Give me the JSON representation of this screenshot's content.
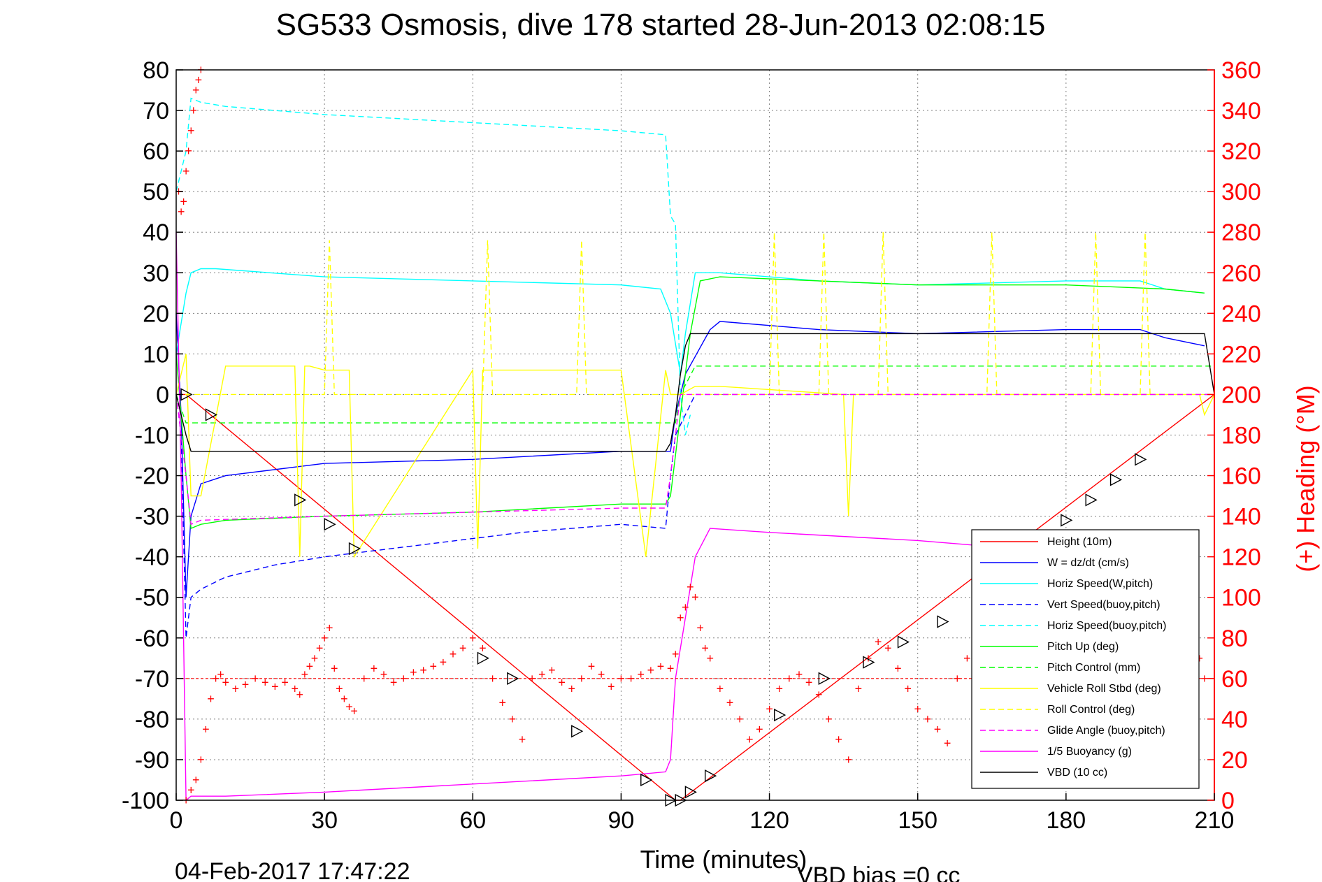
{
  "chart_data": {
    "type": "line",
    "title": "SG533 Osmosis, dive 178 started 28-Jun-2013 02:08:15",
    "xlabel": "Time (minutes)",
    "ylabel_right": "(+) Heading (°M)",
    "xlim": [
      0,
      210
    ],
    "ylim": [
      -100,
      80
    ],
    "ylim_right": [
      0,
      360
    ],
    "xticks": [
      0,
      30,
      60,
      90,
      120,
      150,
      180,
      210
    ],
    "yticks": [
      80,
      70,
      60,
      50,
      40,
      30,
      20,
      10,
      0,
      -10,
      -20,
      -30,
      -40,
      -50,
      -60,
      -70,
      -80,
      -90,
      -100
    ],
    "yticks_right": [
      360,
      340,
      320,
      300,
      280,
      260,
      240,
      220,
      200,
      180,
      160,
      140,
      120,
      100,
      80,
      60,
      40,
      20,
      0
    ],
    "grid": true,
    "legend_position": "lower-right",
    "footer_left": "04-Feb-2017 17:47:22",
    "footer_right": "VBD bias =0 cc",
    "colors": {
      "axis": "#000000",
      "right_axis": "#ff0000",
      "grid": "#808080"
    },
    "series": [
      {
        "name": "Height (10m)",
        "color": "#ff0000",
        "style": "solid",
        "x": [
          0,
          2,
          101,
          102,
          210
        ],
        "y": [
          0,
          0,
          -100,
          -100,
          0
        ]
      },
      {
        "name": "W = dz/dt (cm/s)",
        "color": "#0000ff",
        "style": "solid",
        "x": [
          0,
          1,
          2,
          3,
          5,
          10,
          30,
          60,
          90,
          100,
          101,
          103,
          108,
          110,
          130,
          150,
          180,
          195,
          200,
          208
        ],
        "y": [
          20,
          -5,
          -50,
          -30,
          -22,
          -20,
          -17,
          -16,
          -14,
          -14,
          -5,
          5,
          16,
          18,
          16,
          15,
          16,
          16,
          14,
          12
        ]
      },
      {
        "name": "Horiz Speed(W,pitch)",
        "color": "#00ffff",
        "style": "solid",
        "x": [
          0,
          2,
          3,
          5,
          8,
          30,
          60,
          90,
          98,
          100,
          102,
          103,
          105,
          110,
          130,
          150,
          180,
          195,
          200,
          208
        ],
        "y": [
          10,
          25,
          30,
          31,
          31,
          29,
          28,
          27,
          26,
          20,
          5,
          15,
          30,
          30,
          28,
          27,
          28,
          28,
          26,
          25
        ]
      },
      {
        "name": "Vert Speed(buoy,pitch)",
        "color": "#0000ff",
        "style": "dashed",
        "x": [
          0,
          1,
          2,
          3,
          5,
          10,
          20,
          30,
          50,
          70,
          90,
          99,
          100,
          101,
          105,
          110,
          130,
          150,
          180,
          200,
          210
        ],
        "y": [
          0,
          -10,
          -60,
          -50,
          -48,
          -45,
          -42,
          -40,
          -37,
          -34,
          -32,
          -33,
          -20,
          -10,
          0,
          0,
          0,
          0,
          0,
          0,
          0
        ]
      },
      {
        "name": "Horiz Speed(buoy,pitch)",
        "color": "#00ffff",
        "style": "dashed",
        "x": [
          0,
          2,
          3,
          5,
          10,
          30,
          60,
          90,
          99,
          100,
          101,
          102,
          103,
          104
        ],
        "y": [
          50,
          60,
          73,
          72,
          71,
          69,
          67,
          65,
          64,
          44,
          42,
          0,
          -10,
          -5
        ]
      },
      {
        "name": "Pitch Up (deg)",
        "color": "#00ff00",
        "style": "solid",
        "x": [
          0,
          2,
          3,
          5,
          10,
          30,
          60,
          90,
          99,
          100,
          102,
          104,
          106,
          110,
          130,
          150,
          180,
          200,
          208
        ],
        "y": [
          10,
          -20,
          -33,
          -32,
          -31,
          -30,
          -29,
          -27,
          -27,
          -25,
          -5,
          15,
          28,
          29,
          28,
          27,
          27,
          26,
          25
        ]
      },
      {
        "name": "Pitch Control (mm)",
        "color": "#00ff00",
        "style": "dashed",
        "x": [
          0,
          2,
          3,
          100,
          101,
          102,
          105,
          210
        ],
        "y": [
          0,
          -7,
          -7,
          -7,
          -7,
          0,
          7,
          7
        ]
      },
      {
        "name": "Vehicle Roll Stbd (deg)",
        "color": "#ffff00",
        "style": "solid",
        "x": [
          0,
          2,
          3,
          5,
          10,
          24,
          25,
          26,
          27,
          30,
          35,
          36,
          60,
          61,
          62,
          90,
          95,
          99,
          100,
          102,
          105,
          110,
          135,
          136,
          137,
          138,
          140,
          180,
          207,
          208,
          210
        ],
        "y": [
          0,
          10,
          -25,
          -25,
          7,
          7,
          -40,
          7,
          7,
          6,
          6,
          -40,
          6,
          -38,
          6,
          6,
          -40,
          6,
          0,
          0,
          2,
          2,
          0,
          -30,
          0,
          0,
          0,
          0,
          0,
          -5,
          0
        ]
      },
      {
        "name": "Roll Control (deg)",
        "color": "#ffff00",
        "style": "dashed",
        "x": [
          0,
          30,
          31,
          32,
          62,
          63,
          64,
          81,
          82,
          83,
          105,
          120,
          121,
          122,
          130,
          131,
          132,
          142,
          143,
          144,
          164,
          165,
          166,
          180,
          185,
          186,
          187,
          190,
          195,
          196,
          197,
          210
        ],
        "y": [
          0,
          0,
          38,
          0,
          0,
          38,
          0,
          0,
          38,
          0,
          0,
          0,
          40,
          0,
          0,
          40,
          0,
          0,
          40,
          0,
          0,
          40,
          0,
          0,
          0,
          40,
          0,
          0,
          0,
          40,
          0,
          0
        ]
      },
      {
        "name": "Glide Angle (buoy,pitch)",
        "color": "#ff00ff",
        "style": "dashed",
        "x": [
          0,
          2,
          3,
          5,
          30,
          60,
          90,
          99,
          100,
          102,
          105,
          210
        ],
        "y": [
          0,
          -20,
          -32,
          -31,
          -30,
          -29,
          -28,
          -28,
          -20,
          0,
          0,
          0
        ]
      },
      {
        "name": "1/5 Buoyancy (g)",
        "color": "#ff00ff",
        "style": "solid",
        "x": [
          0,
          1,
          2,
          3,
          10,
          30,
          60,
          90,
          99,
          100,
          101,
          103,
          105,
          108,
          120,
          150,
          170
        ],
        "y": [
          40,
          -20,
          -100,
          -99,
          -99,
          -98,
          -96,
          -94,
          -93,
          -90,
          -70,
          -55,
          -40,
          -33,
          -34,
          -36,
          -38
        ]
      },
      {
        "name": "VBD (10 cc)",
        "color": "#000000",
        "style": "solid",
        "x": [
          0,
          1,
          2,
          3,
          5,
          99,
          100,
          101,
          102,
          103,
          104,
          105,
          207,
          208,
          210
        ],
        "y": [
          0,
          -5,
          -10,
          -14,
          -14,
          -14,
          -12,
          -5,
          5,
          12,
          15,
          15,
          15,
          15,
          0
        ]
      }
    ],
    "heading_series": {
      "name": "Heading",
      "axis": "right",
      "color": "#ff0000",
      "marker": "+",
      "reference_value": 60,
      "x": [
        0.5,
        1,
        1.5,
        2,
        2.5,
        3,
        3.5,
        4,
        4.5,
        5,
        2,
        3,
        4,
        5,
        6,
        7,
        8,
        9,
        10,
        12,
        14,
        16,
        18,
        20,
        22,
        24,
        25,
        26,
        27,
        28,
        29,
        30,
        31,
        32,
        33,
        34,
        35,
        36,
        38,
        40,
        42,
        44,
        46,
        48,
        50,
        52,
        54,
        56,
        58,
        60,
        62,
        64,
        66,
        68,
        70,
        72,
        74,
        76,
        78,
        80,
        82,
        84,
        86,
        88,
        90,
        92,
        94,
        96,
        98,
        100,
        101,
        102,
        103,
        104,
        105,
        106,
        107,
        108,
        110,
        112,
        114,
        116,
        118,
        120,
        122,
        124,
        126,
        128,
        130,
        132,
        134,
        136,
        138,
        140,
        142,
        144,
        146,
        148,
        150,
        152,
        154,
        156,
        158,
        160,
        162,
        164,
        166,
        168,
        170,
        172,
        174,
        176,
        178,
        180,
        182,
        184,
        186,
        188,
        190,
        192,
        194,
        196,
        198,
        200,
        202,
        204,
        206,
        207,
        208
      ],
      "y": [
        300,
        290,
        295,
        310,
        320,
        330,
        340,
        350,
        355,
        360,
        0,
        5,
        10,
        20,
        35,
        50,
        60,
        62,
        58,
        55,
        57,
        60,
        58,
        56,
        58,
        55,
        52,
        62,
        66,
        70,
        75,
        80,
        85,
        65,
        55,
        50,
        46,
        44,
        60,
        65,
        62,
        58,
        60,
        63,
        64,
        66,
        68,
        72,
        75,
        80,
        75,
        60,
        48,
        40,
        30,
        60,
        62,
        64,
        58,
        55,
        60,
        66,
        62,
        56,
        60,
        60,
        62,
        64,
        66,
        65,
        72,
        90,
        95,
        105,
        100,
        85,
        75,
        70,
        55,
        48,
        40,
        30,
        35,
        45,
        55,
        60,
        62,
        58,
        52,
        40,
        30,
        20,
        55,
        70,
        78,
        75,
        65,
        55,
        45,
        40,
        35,
        28,
        60,
        70,
        75,
        62,
        55,
        45,
        60,
        70,
        75,
        80,
        78,
        70,
        65,
        60,
        55,
        50,
        60,
        55,
        65,
        60,
        55,
        50,
        60,
        65,
        80,
        70,
        60
      ]
    },
    "dive_markers": {
      "name": "Dive markers",
      "color": "#000000",
      "x": [
        2,
        7,
        25,
        31,
        36,
        62,
        68,
        81,
        95,
        100,
        102,
        104,
        108,
        122,
        131,
        140,
        147,
        155,
        174,
        180,
        185,
        190,
        195
      ],
      "y": [
        0,
        -5,
        -26,
        -32,
        -38,
        -65,
        -70,
        -83,
        -95,
        -100,
        -100,
        -98,
        -94,
        -79,
        -70,
        -66,
        -61,
        -56,
        -48,
        -31,
        -26,
        -21,
        -16
      ]
    }
  }
}
